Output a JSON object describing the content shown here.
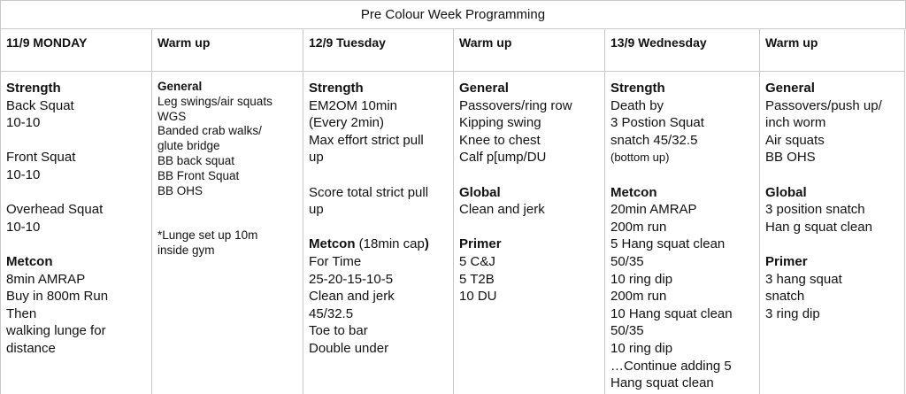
{
  "title": "Pre Colour Week Programming",
  "headers": [
    "11/9 MONDAY",
    "Warm up",
    "12/9 Tuesday",
    "Warm up",
    "13/9 Wednesday",
    "Warm up"
  ],
  "columns": [
    [
      [
        {
          "t": "Strength",
          "b": true
        }
      ],
      [
        {
          "t": "Back Squat"
        }
      ],
      [
        {
          "t": "10-10"
        }
      ],
      [],
      [
        {
          "t": "Front Squat"
        }
      ],
      [
        {
          "t": "10-10"
        }
      ],
      [],
      [
        {
          "t": "Overhead Squat"
        }
      ],
      [
        {
          "t": "10-10"
        }
      ],
      [],
      [
        {
          "t": "Metcon",
          "b": true
        }
      ],
      [
        {
          "t": "8min AMRAP"
        }
      ],
      [
        {
          "t": "Buy in 800m Run"
        }
      ],
      [
        {
          "t": "Then"
        }
      ],
      [
        {
          "t": "walking lunge for"
        }
      ],
      [
        {
          "t": "distance"
        }
      ]
    ],
    [
      [
        {
          "t": "General",
          "b": true
        }
      ],
      [
        {
          "t": "Leg swings/air squats"
        }
      ],
      [
        {
          "t": "WGS"
        }
      ],
      [
        {
          "t": "Banded crab walks/"
        }
      ],
      [
        {
          "t": "glute bridge"
        }
      ],
      [
        {
          "t": "BB back squat"
        }
      ],
      [
        {
          "t": "BB Front Squat"
        }
      ],
      [
        {
          "t": "BB OHS"
        }
      ],
      [],
      [],
      [
        {
          "t": "*Lunge set up 10m"
        }
      ],
      [
        {
          "t": "inside gym"
        }
      ]
    ],
    [
      [
        {
          "t": "Strength",
          "b": true
        }
      ],
      [
        {
          "t": "EM2OM 10min"
        }
      ],
      [
        {
          "t": "(Every 2min)"
        }
      ],
      [
        {
          "t": "Max effort strict pull"
        }
      ],
      [
        {
          "t": "up"
        }
      ],
      [],
      [
        {
          "t": "Score total strict pull"
        }
      ],
      [
        {
          "t": "up"
        }
      ],
      [],
      [
        {
          "t": "Metcon",
          "b": true
        },
        {
          "t": " (18min cap"
        },
        {
          "t": ")",
          "b": true
        }
      ],
      [
        {
          "t": "For Time"
        }
      ],
      [
        {
          "t": "25-20-15-10-5"
        }
      ],
      [
        {
          "t": "Clean and jerk"
        }
      ],
      [
        {
          "t": "45/32.5"
        }
      ],
      [
        {
          "t": "Toe to bar"
        }
      ],
      [
        {
          "t": "Double under"
        }
      ]
    ],
    [
      [
        {
          "t": "General",
          "b": true
        }
      ],
      [
        {
          "t": "Passovers/ring row"
        }
      ],
      [
        {
          "t": "Kipping swing"
        }
      ],
      [
        {
          "t": "Knee to chest"
        }
      ],
      [
        {
          "t": "Calf p[ump/DU"
        }
      ],
      [],
      [
        {
          "t": "Global",
          "b": true
        }
      ],
      [
        {
          "t": "Clean and jerk"
        }
      ],
      [],
      [
        {
          "t": "Primer",
          "b": true
        }
      ],
      [
        {
          "t": "5 C&J"
        }
      ],
      [
        {
          "t": "5 T2B"
        }
      ],
      [
        {
          "t": "10 DU"
        }
      ]
    ],
    [
      [
        {
          "t": "Strength",
          "b": true
        }
      ],
      [
        {
          "t": "Death by"
        }
      ],
      [
        {
          "t": "3 Postion Squat"
        }
      ],
      [
        {
          "t": "snatch 45/32.5"
        }
      ],
      [
        {
          "t": "(bottom up)",
          "s": true
        }
      ],
      [],
      [
        {
          "t": "Metcon",
          "b": true
        }
      ],
      [
        {
          "t": "20min AMRAP"
        }
      ],
      [
        {
          "t": "200m run"
        }
      ],
      [
        {
          "t": "5 Hang squat clean"
        }
      ],
      [
        {
          "t": "50/35"
        }
      ],
      [
        {
          "t": "10 ring dip"
        }
      ],
      [
        {
          "t": "200m run"
        }
      ],
      [
        {
          "t": "10 Hang squat clean"
        }
      ],
      [
        {
          "t": "50/35"
        }
      ],
      [
        {
          "t": "10 ring dip"
        }
      ],
      [
        {
          "t": "…Continue adding 5"
        }
      ],
      [
        {
          "t": "Hang squat clean"
        }
      ]
    ],
    [
      [
        {
          "t": "General",
          "b": true
        }
      ],
      [
        {
          "t": "Passovers/push up/"
        }
      ],
      [
        {
          "t": "inch worm"
        }
      ],
      [
        {
          "t": "Air squats"
        }
      ],
      [
        {
          "t": "BB OHS"
        }
      ],
      [],
      [
        {
          "t": "Global",
          "b": true
        }
      ],
      [
        {
          "t": "3 position snatch"
        }
      ],
      [
        {
          "t": "Han g squat clean"
        }
      ],
      [],
      [
        {
          "t": "Primer",
          "b": true
        }
      ],
      [
        {
          "t": "3 hang squat"
        }
      ],
      [
        {
          "t": "snatch"
        }
      ],
      [
        {
          "t": "3 ring dip"
        }
      ]
    ]
  ]
}
